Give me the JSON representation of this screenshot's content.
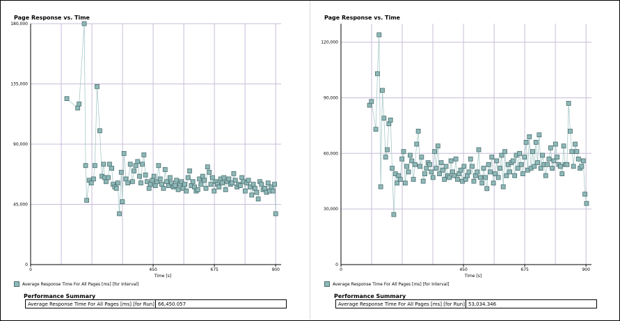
{
  "chart_data": [
    {
      "type": "scatter",
      "title": "Page Response vs. Time",
      "xlabel": "Time [s]",
      "ylabel": "",
      "xlim": [
        0,
        920
      ],
      "ylim": [
        0,
        180000
      ],
      "xticks": [
        0,
        450,
        675,
        900
      ],
      "xtick_labels": [
        "0",
        "450",
        "675",
        "900"
      ],
      "yticks": [
        0,
        45000,
        90000,
        135000,
        180000
      ],
      "ytick_labels": [
        "0",
        "45,000",
        "90,000",
        "135,000",
        "180,000"
      ],
      "grid": true,
      "legend_position": "bottom-left",
      "series": [
        {
          "name": "Average Response Time For All Pages [ms] [for Interval]",
          "x": [
            133,
            173,
            178,
            197,
            202,
            206,
            215,
            223,
            231,
            236,
            244,
            254,
            262,
            268,
            272,
            277,
            285,
            290,
            298,
            303,
            309,
            315,
            320,
            326,
            333,
            337,
            343,
            350,
            357,
            366,
            374,
            380,
            386,
            393,
            400,
            405,
            410,
            416,
            422,
            428,
            435,
            440,
            447,
            453,
            458,
            464,
            470,
            476,
            482,
            488,
            494,
            500,
            507,
            512,
            518,
            524,
            530,
            536,
            542,
            548,
            554,
            560,
            566,
            572,
            578,
            584,
            590,
            596,
            602,
            608,
            614,
            620,
            626,
            632,
            638,
            644,
            650,
            656,
            662,
            668,
            674,
            680,
            686,
            692,
            698,
            704,
            710,
            716,
            722,
            728,
            734,
            740,
            746,
            752,
            758,
            764,
            770,
            776,
            782,
            788,
            794,
            800,
            806,
            812,
            818,
            824,
            830,
            836,
            842,
            848,
            854,
            860,
            866,
            872,
            878,
            884,
            890,
            896,
            900
          ],
          "values": [
            124000,
            117000,
            120000,
            180000,
            74000,
            48000,
            63000,
            61000,
            64000,
            74000,
            133000,
            100000,
            66000,
            75000,
            65000,
            62000,
            65000,
            75000,
            72000,
            60000,
            58000,
            57000,
            61000,
            38000,
            69000,
            47000,
            83000,
            64000,
            61000,
            75000,
            62000,
            70000,
            74000,
            77000,
            66000,
            61000,
            75000,
            82000,
            67000,
            62000,
            57000,
            60000,
            63000,
            66000,
            59000,
            62000,
            74000,
            64000,
            60000,
            57000,
            71000,
            62000,
            59000,
            65000,
            61000,
            58000,
            59000,
            63000,
            56000,
            60000,
            62000,
            57000,
            60000,
            55000,
            65000,
            70000,
            59000,
            62000,
            58000,
            55000,
            56000,
            64000,
            60000,
            66000,
            63000,
            57000,
            73000,
            69000,
            60000,
            65000,
            55000,
            62000,
            60000,
            58000,
            64000,
            61000,
            65000,
            56000,
            62000,
            64000,
            60000,
            61000,
            68000,
            63000,
            58000,
            60000,
            59000,
            65000,
            62000,
            55000,
            61000,
            63000,
            58000,
            52000,
            60000,
            57000,
            54000,
            49000,
            62000,
            60000,
            56000,
            57000,
            54000,
            61000,
            55000,
            58000,
            55000,
            60000,
            38000
          ],
          "color": "#8fb8b8"
        }
      ]
    },
    {
      "type": "scatter",
      "title": "Page Response vs. Time",
      "xlabel": "Time [s]",
      "ylabel": "",
      "xlim": [
        0,
        920
      ],
      "ylim": [
        0,
        130000
      ],
      "xticks": [
        0,
        450,
        675,
        900
      ],
      "xtick_labels": [
        "0",
        "450",
        "675",
        "900"
      ],
      "yticks": [
        0,
        30000,
        60000,
        90000,
        120000
      ],
      "ytick_labels": [
        "0",
        "30,000",
        "60,000",
        "90,000",
        "120,000"
      ],
      "grid": true,
      "legend_position": "bottom-left",
      "series": [
        {
          "name": "Average Response Time For All Pages [ms] [for Interval]",
          "x": [
            105,
            112,
            128,
            134,
            140,
            146,
            152,
            158,
            164,
            170,
            176,
            182,
            188,
            194,
            200,
            206,
            212,
            218,
            224,
            230,
            236,
            242,
            248,
            254,
            260,
            266,
            272,
            278,
            284,
            290,
            296,
            302,
            308,
            314,
            320,
            326,
            332,
            338,
            344,
            350,
            356,
            362,
            368,
            374,
            380,
            386,
            392,
            398,
            404,
            410,
            416,
            422,
            428,
            434,
            440,
            446,
            452,
            458,
            464,
            470,
            476,
            482,
            488,
            494,
            500,
            506,
            512,
            518,
            524,
            530,
            536,
            542,
            548,
            554,
            560,
            566,
            572,
            578,
            584,
            590,
            596,
            602,
            608,
            614,
            620,
            626,
            632,
            638,
            644,
            650,
            656,
            662,
            668,
            674,
            680,
            686,
            692,
            698,
            704,
            710,
            716,
            722,
            728,
            734,
            740,
            746,
            752,
            758,
            764,
            770,
            776,
            782,
            788,
            794,
            800,
            806,
            812,
            818,
            824,
            830,
            836,
            842,
            848,
            854,
            860,
            866,
            872,
            878,
            884,
            890,
            896,
            902
          ],
          "values": [
            86000,
            88000,
            73000,
            103000,
            124000,
            42000,
            94000,
            79000,
            58000,
            62000,
            76000,
            78000,
            52000,
            27000,
            49000,
            44000,
            48000,
            46000,
            57000,
            61000,
            44000,
            53000,
            50000,
            59000,
            56000,
            46000,
            54000,
            65000,
            72000,
            53000,
            58000,
            45000,
            49000,
            52000,
            55000,
            54000,
            50000,
            47000,
            61000,
            52000,
            64000,
            49000,
            55000,
            51000,
            46000,
            53000,
            48000,
            47000,
            56000,
            50000,
            48000,
            57000,
            46000,
            49000,
            51000,
            45000,
            53000,
            46000,
            48000,
            50000,
            57000,
            53000,
            45000,
            48000,
            50000,
            62000,
            47000,
            44000,
            52000,
            47000,
            41000,
            54000,
            50000,
            58000,
            44000,
            49000,
            56000,
            47000,
            52000,
            59000,
            42000,
            61000,
            48000,
            54000,
            50000,
            55000,
            56000,
            48000,
            59000,
            52000,
            60000,
            54000,
            49000,
            58000,
            66000,
            51000,
            69000,
            52000,
            61000,
            53000,
            66000,
            55000,
            70000,
            52000,
            59000,
            54000,
            48000,
            54000,
            57000,
            63000,
            52000,
            56000,
            65000,
            58000,
            54000,
            53000,
            49000,
            64000,
            54000,
            54000,
            87000,
            72000,
            61000,
            53000,
            65000,
            61000,
            57000,
            52000,
            53000,
            56000,
            38000,
            33000
          ],
          "color": "#8fb8b8"
        }
      ]
    }
  ],
  "panels": [
    {
      "title": "Page Response vs. Time",
      "legend_label": "Average Response Time For All Pages [ms] [for Interval]",
      "summary_title": "Performance Summary",
      "summary_label": "Average Response Time For All Pages [ms] [for Run]",
      "summary_value": "66,450.057"
    },
    {
      "title": "Page Response vs. Time",
      "legend_label": "Average Response Time For All Pages [ms] [for Interval]",
      "summary_title": "Performance Summary",
      "summary_label": "Average Response Time For All Pages [ms] [for Run]",
      "summary_value": "53,034.346"
    }
  ],
  "colors": {
    "marker_fill": "#8fb8b8",
    "marker_stroke": "#4a6f6f",
    "line": "#a8c8c8",
    "grid": "#c8bcd8"
  }
}
